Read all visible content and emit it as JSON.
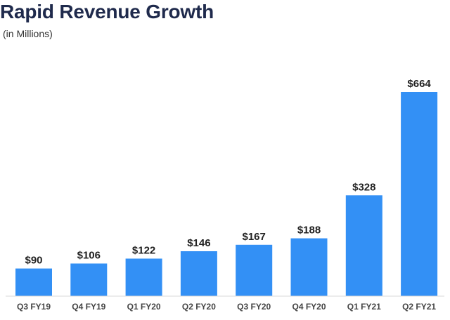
{
  "chart_data": {
    "type": "bar",
    "title": "Rapid Revenue Growth",
    "subtitle": "(in Millions)",
    "categories": [
      "Q3 FY19",
      "Q4 FY19",
      "Q1 FY20",
      "Q2 FY20",
      "Q3 FY20",
      "Q4 FY20",
      "Q1 FY21",
      "Q2 FY21"
    ],
    "values": [
      90,
      106,
      122,
      146,
      167,
      188,
      328,
      664
    ],
    "data_labels": [
      "$90",
      "$106",
      "$122",
      "$146",
      "$167",
      "$188",
      "$328",
      "$664"
    ],
    "xlabel": "",
    "ylabel": "",
    "ylim": [
      0,
      664
    ],
    "grid": false,
    "legend": "none",
    "colors": {
      "bar": "#3390f5",
      "axis": "#d9d9d9",
      "title": "#1f2a4c"
    }
  }
}
